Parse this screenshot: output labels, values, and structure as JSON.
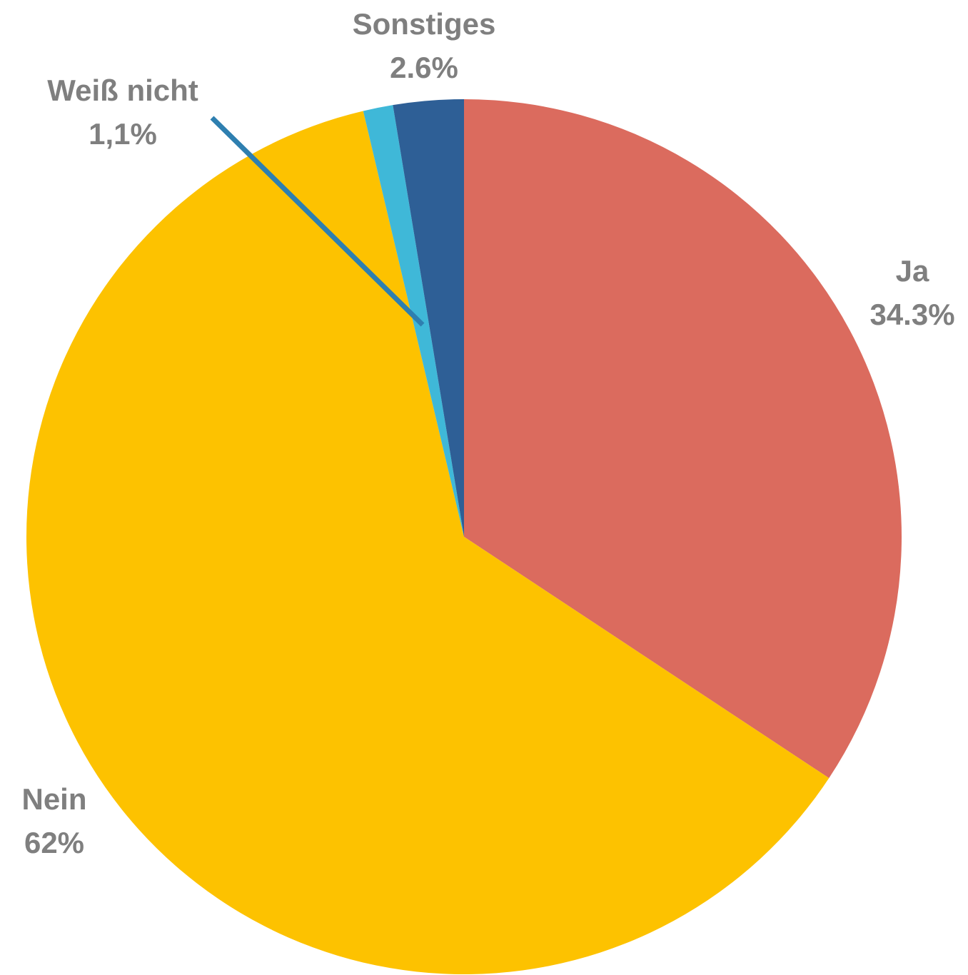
{
  "chart_data": {
    "type": "pie",
    "categories": [
      "Ja",
      "Nein",
      "Weiß nicht",
      "Sonstiges"
    ],
    "values": [
      34.3,
      62,
      1.1,
      2.6
    ],
    "value_labels": [
      "34.3%",
      "62%",
      "1,1%",
      "2.6%"
    ],
    "colors": [
      "#db6b5e",
      "#fdc200",
      "#3fb8d8",
      "#2e5f96"
    ]
  }
}
